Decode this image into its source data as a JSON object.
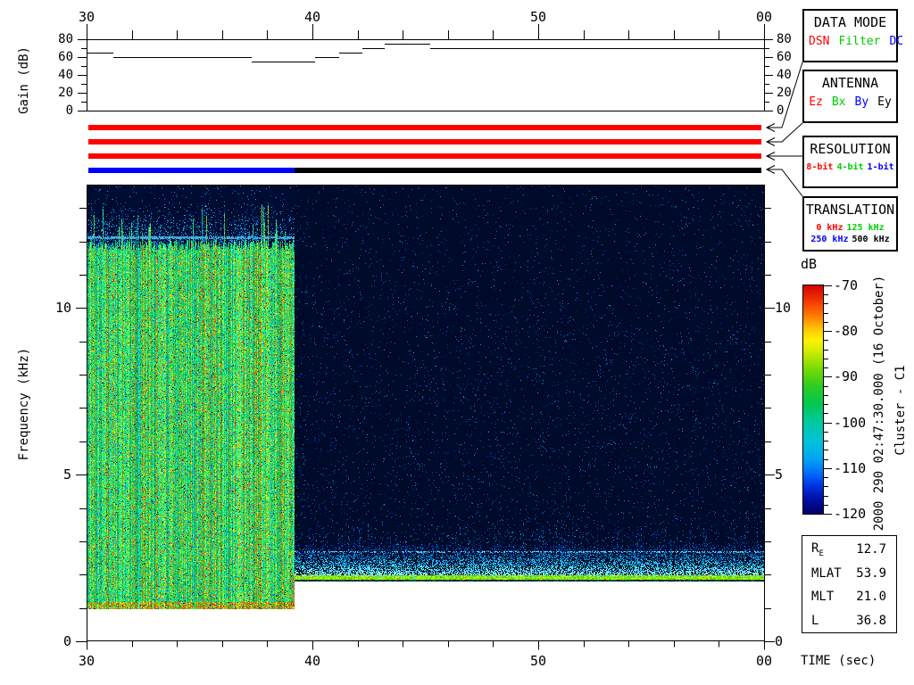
{
  "side_text": {
    "timestamp": "2000 290 02:47:30.000 (16 October)",
    "spacecraft": "Cluster - C1"
  },
  "info_box": {
    "rows": [
      {
        "label": "R",
        "sub": "E",
        "value": "12.7"
      },
      {
        "label": "MLAT",
        "sub": "",
        "value": "53.9"
      },
      {
        "label": "MLT",
        "sub": "",
        "value": "21.0"
      },
      {
        "label": "L",
        "sub": "",
        "value": "36.8"
      }
    ]
  },
  "panels": [
    {
      "title": "DATA MODE",
      "items": [
        {
          "label": "DSN",
          "color": "#ff0000"
        },
        {
          "label": "Filter",
          "color": "#00cc00"
        },
        {
          "label": "DC",
          "color": "#0000ff"
        }
      ]
    },
    {
      "title": "ANTENNA",
      "items": [
        {
          "label": "Ez",
          "color": "#ff0000"
        },
        {
          "label": "Bx",
          "color": "#00cc00"
        },
        {
          "label": "By",
          "color": "#0000ff"
        },
        {
          "label": "Ey",
          "color": "#000000"
        }
      ]
    },
    {
      "title": "RESOLUTION",
      "small": true,
      "items": [
        {
          "label": "8-bit",
          "color": "#ff0000"
        },
        {
          "label": "4-bit",
          "color": "#00cc00"
        },
        {
          "label": "1-bit",
          "color": "#0000ff"
        }
      ]
    },
    {
      "title": "TRANSLATION",
      "small": true,
      "items": [
        {
          "label": "0 kHz",
          "color": "#ff0000"
        },
        {
          "label": "125 kHz",
          "color": "#00cc00",
          "break_after": true
        },
        {
          "label": "250 kHz",
          "color": "#0000ff"
        },
        {
          "label": "500 kHz",
          "color": "#000000"
        }
      ]
    }
  ],
  "status_bars": [
    {
      "name": "data-mode",
      "segments": [
        {
          "value": "DSN",
          "color": "#ff0000",
          "t": [
            30,
            60
          ]
        }
      ]
    },
    {
      "name": "antenna",
      "segments": [
        {
          "value": "Ez",
          "color": "#ff0000",
          "t": [
            30,
            60
          ]
        }
      ]
    },
    {
      "name": "resolution",
      "segments": [
        {
          "value": "8-bit",
          "color": "#ff0000",
          "t": [
            30,
            60
          ]
        }
      ]
    },
    {
      "name": "translation",
      "segments": [
        {
          "value": "250 kHz",
          "color": "#0000ff",
          "t": [
            30,
            39.2
          ]
        },
        {
          "value": "500 kHz",
          "color": "#000000",
          "t": [
            39.2,
            60
          ]
        }
      ]
    }
  ],
  "chart_data": [
    {
      "type": "line",
      "title": "Receiver AGC gain",
      "ylabel": "Gain (dB)",
      "ylim": [
        0,
        80
      ],
      "yticks": [
        {
          "v": 0,
          "label": "0"
        },
        {
          "v": 20,
          "label": "20"
        },
        {
          "v": 40,
          "label": "40"
        },
        {
          "v": 60,
          "label": "60"
        },
        {
          "v": 80,
          "label": "80"
        }
      ],
      "ytick_minor_step": 10,
      "xlim_sec": [
        30,
        60
      ],
      "xticks": [
        {
          "t": 30,
          "label": "30"
        },
        {
          "t": 40,
          "label": "40"
        },
        {
          "t": 50,
          "label": "50"
        },
        {
          "t": 60,
          "label": "00"
        }
      ],
      "xtick_minor_step": 2,
      "steps": [
        {
          "t": 30.0,
          "db": 65
        },
        {
          "t": 31.2,
          "db": 60
        },
        {
          "t": 37.3,
          "db": 55
        },
        {
          "t": 40.1,
          "db": 60
        },
        {
          "t": 41.2,
          "db": 65
        },
        {
          "t": 42.2,
          "db": 70
        },
        {
          "t": 43.2,
          "db": 75
        },
        {
          "t": 45.2,
          "db": 70
        },
        {
          "t": 60.0,
          "db": 70
        }
      ]
    },
    {
      "type": "heatmap",
      "title": "Cluster WBD wideband spectrogram",
      "ylabel": "Frequency (kHz)",
      "xlabel": "TIME (sec)",
      "ylim_khz": [
        0,
        13.7
      ],
      "yticks": [
        {
          "f": 0,
          "label": "0"
        },
        {
          "f": 5,
          "label": "5"
        },
        {
          "f": 10,
          "label": "10"
        }
      ],
      "ytick_minor_step_khz": 1,
      "xlim_sec": [
        30,
        60
      ],
      "xticks": [
        {
          "t": 30,
          "label": "30"
        },
        {
          "t": 40,
          "label": "40"
        },
        {
          "t": 50,
          "label": "50"
        },
        {
          "t": 60,
          "label": "00"
        }
      ],
      "xtick_minor_step": 2,
      "colorbar": {
        "label": "dB",
        "max": -70,
        "min": -120,
        "ticks": [
          {
            "db": -70,
            "label": "-70"
          },
          {
            "db": -80,
            "label": "-80"
          },
          {
            "db": -90,
            "label": "-90"
          },
          {
            "db": -100,
            "label": "-100"
          },
          {
            "db": -110,
            "label": "-110"
          },
          {
            "db": -120,
            "label": "-120"
          }
        ],
        "tick_minor_step": 2,
        "gradient": [
          "#d40000 0%",
          "#f23000 6%",
          "#ff7700 13%",
          "#ffc400 19%",
          "#fff200 24%",
          "#c3ea00 30%",
          "#7cdc00 36%",
          "#2ecc22 44%",
          "#00c853 52%",
          "#00c9a0 60%",
          "#00c3d8 68%",
          "#00a4f2 76%",
          "#006eff 82%",
          "#0030e0 88%",
          "#000fa0 94%",
          "#000066 100%"
        ]
      },
      "segments": [
        {
          "t": [
            30,
            39.2
          ],
          "f_khz": [
            0.95,
            13.7
          ],
          "character": "broadband hiss ~-85 to -95 dB",
          "quiet_above_khz": 12.1,
          "edge_line_khz": 12.1
        },
        {
          "t": [
            39.2,
            60
          ],
          "f_khz": [
            1.8,
            13.7
          ],
          "character": "quiet background ~-120 dB",
          "band_khz": [
            1.9,
            2.9
          ],
          "line_khz": 1.9,
          "dotted_line_khz": 2.7
        }
      ]
    }
  ]
}
